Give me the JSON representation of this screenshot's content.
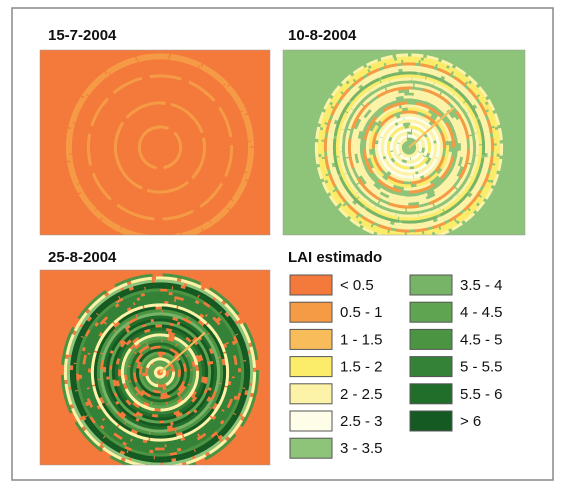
{
  "panels": [
    {
      "title": "15-7-2004"
    },
    {
      "title": "10-8-2004"
    },
    {
      "title": "25-8-2004"
    }
  ],
  "legend": {
    "title": "LAI estimado",
    "items": [
      {
        "label": "< 0.5",
        "color": "#f47a3c"
      },
      {
        "label": "0.5 - 1",
        "color": "#f59a45"
      },
      {
        "label": "1 - 1.5",
        "color": "#f8bd5a"
      },
      {
        "label": "1.5 - 2",
        "color": "#fbec6a"
      },
      {
        "label": "2 - 2.5",
        "color": "#fdf3a8"
      },
      {
        "label": "2.5 - 3",
        "color": "#fdfde8"
      },
      {
        "label": "3 - 3.5",
        "color": "#8dc47a"
      },
      {
        "label": "3.5 - 4",
        "color": "#77b468"
      },
      {
        "label": "4 - 4.5",
        "color": "#5ea451"
      },
      {
        "label": "4.5 - 5",
        "color": "#4a9442"
      },
      {
        "label": "5 - 5.5",
        "color": "#338237"
      },
      {
        "label": "5.5 - 6",
        "color": "#216d2a"
      },
      {
        "label": "> 6",
        "color": "#155a22"
      }
    ]
  }
}
